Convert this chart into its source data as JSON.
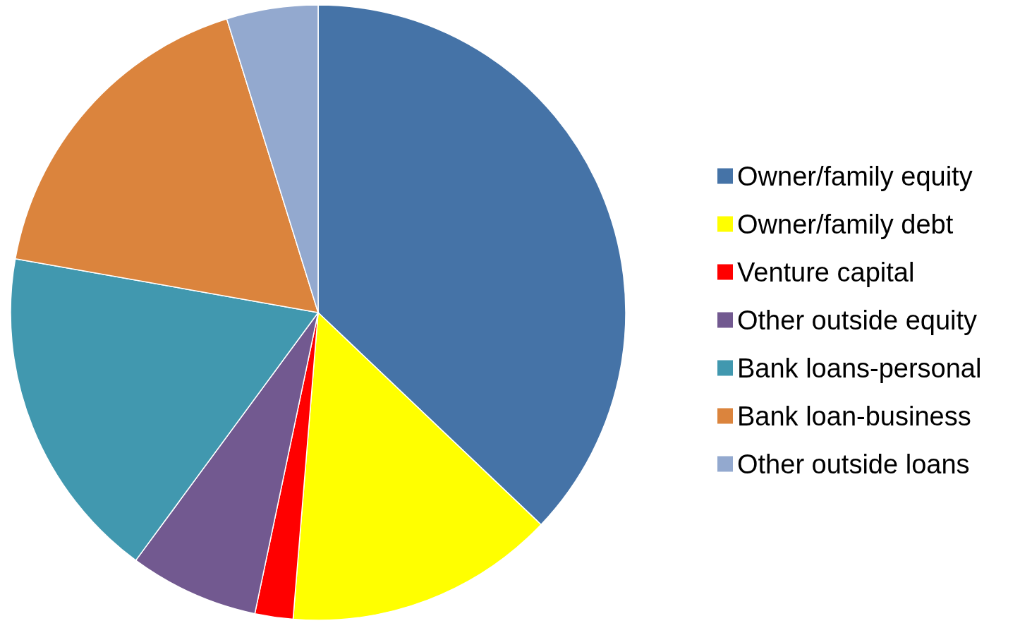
{
  "chart_data": {
    "type": "pie",
    "categories": [
      "Owner/family equity",
      "Owner/family debt",
      "Venture capital",
      "Other outside equity",
      "Bank loans-personal",
      "Bank loan-business",
      "Other outside loans"
    ],
    "values": [
      37.1,
      14.2,
      2.0,
      6.8,
      17.7,
      17.4,
      4.8
    ],
    "colors": [
      "#4573a7",
      "#ffff00",
      "#ff0000",
      "#725990",
      "#4198af",
      "#db843d",
      "#93a9cf"
    ],
    "legend": "right"
  }
}
